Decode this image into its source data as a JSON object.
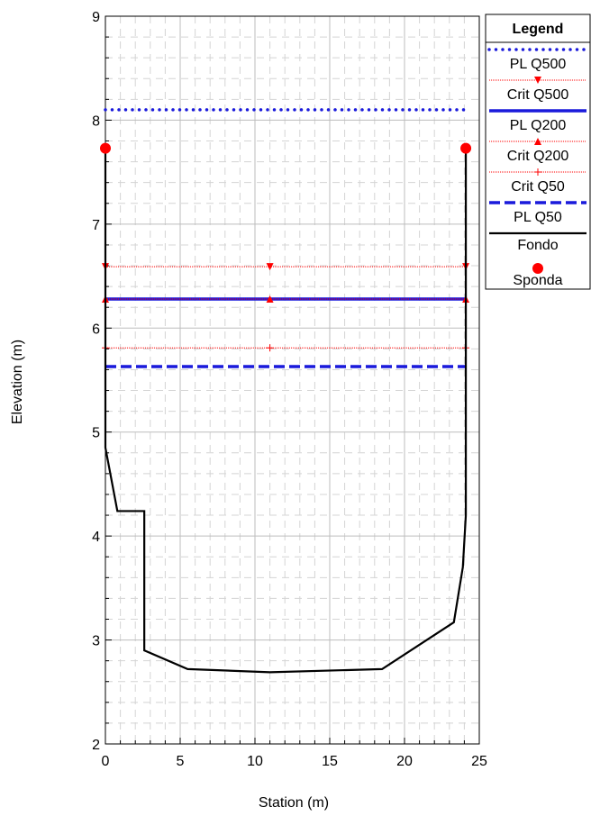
{
  "chart_data": {
    "type": "line",
    "title": "",
    "xlabel": "Station (m)",
    "ylabel": "Elevation (m)",
    "xlim": [
      0,
      25
    ],
    "ylim": [
      2,
      9
    ],
    "xticks": [
      "0",
      "5",
      "10",
      "15",
      "20",
      "25"
    ],
    "yticks": [
      "2",
      "3",
      "4",
      "5",
      "6",
      "7",
      "8",
      "9"
    ],
    "grid": true,
    "legend_title": "Legend",
    "legend_position": "right",
    "series": [
      {
        "name": "PL Q500",
        "kind": "water",
        "style": "dotted",
        "color": "#1a1adb",
        "x": [
          0,
          24.1
        ],
        "y": [
          8.1,
          8.1
        ]
      },
      {
        "name": "Crit Q500",
        "kind": "marker-line",
        "marker": "triangle-down",
        "color": "#ff0000",
        "x": [
          0,
          11,
          24.1
        ],
        "y": [
          6.59,
          6.59,
          6.59
        ]
      },
      {
        "name": "PL Q200",
        "kind": "water",
        "style": "solid",
        "color": "#1a1adb",
        "x": [
          0,
          24.1
        ],
        "y": [
          6.28,
          6.28
        ]
      },
      {
        "name": "Crit Q200",
        "kind": "marker-line",
        "marker": "triangle-up",
        "color": "#ff0000",
        "x": [
          0,
          11,
          24.1
        ],
        "y": [
          6.28,
          6.28,
          6.28
        ]
      },
      {
        "name": "Crit Q50",
        "kind": "marker-line",
        "marker": "plus",
        "color": "#ff0000",
        "x": [
          0,
          11,
          24.1
        ],
        "y": [
          5.81,
          5.81,
          5.81
        ]
      },
      {
        "name": "PL Q50",
        "kind": "water",
        "style": "dashed",
        "color": "#1a1adb",
        "x": [
          0,
          24.1
        ],
        "y": [
          5.63,
          5.63
        ]
      },
      {
        "name": "Fondo",
        "kind": "ground",
        "color": "#000000",
        "x": [
          0,
          0,
          0.8,
          2.6,
          2.6,
          5.5,
          11,
          18.5,
          23.3,
          23.9,
          24.1,
          24.1
        ],
        "y": [
          7.73,
          4.85,
          4.24,
          4.24,
          2.9,
          2.72,
          2.69,
          2.72,
          3.17,
          3.7,
          4.2,
          7.73
        ]
      },
      {
        "name": "Sponda",
        "kind": "bank",
        "color": "#ff0000",
        "x": [
          0,
          24.1
        ],
        "y": [
          7.73,
          7.73
        ]
      }
    ]
  }
}
